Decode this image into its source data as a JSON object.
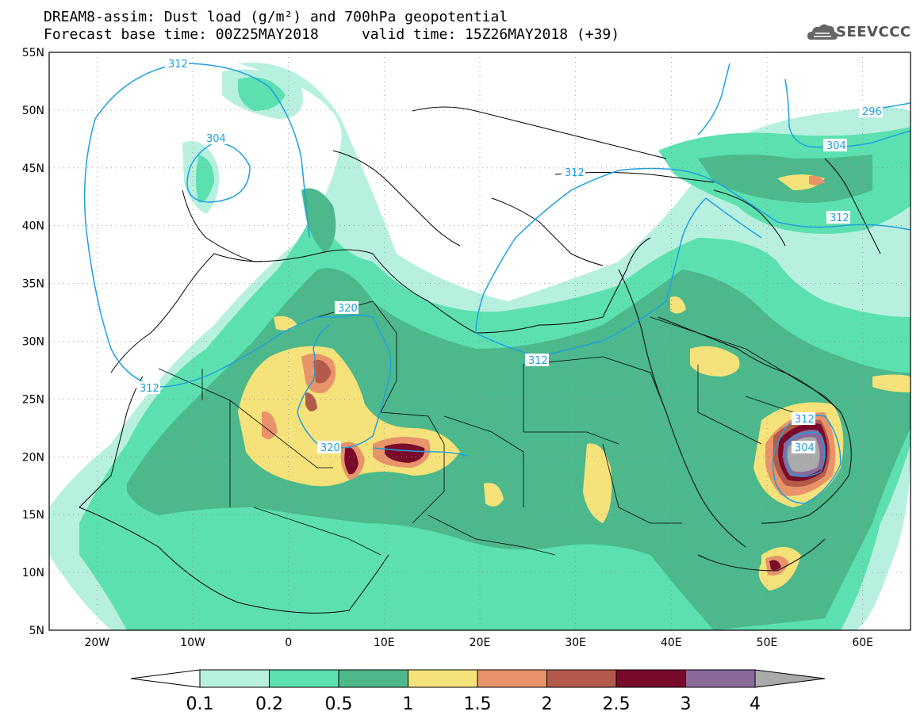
{
  "title": {
    "line1": "DREAM8-assim: Dust load (g/m²) and 700hPa geopotential",
    "line2": "Forecast base time: 00Z25MAY2018     valid time: 15Z26MAY2018 (+39)"
  },
  "logo": {
    "text": "SEEVCCC",
    "icon": "cloud-logo-icon"
  },
  "map": {
    "lon_range": [
      -25,
      65
    ],
    "lat_range": [
      5,
      55
    ],
    "lat_ticks": [
      "55N",
      "50N",
      "45N",
      "40N",
      "35N",
      "30N",
      "25N",
      "20N",
      "15N",
      "10N",
      "5N"
    ],
    "lon_ticks": [
      "20W",
      "10W",
      "0",
      "10E",
      "20E",
      "30E",
      "40E",
      "50E",
      "60E"
    ],
    "contour_labels": [
      "312",
      "304",
      "320",
      "312",
      "320",
      "312",
      "312",
      "304",
      "296",
      "312",
      "312",
      "304"
    ]
  },
  "colorbar": {
    "labels": [
      "0.1",
      "0.2",
      "0.5",
      "1",
      "1.5",
      "2",
      "2.5",
      "3",
      "4"
    ],
    "colors": [
      "#b8f0e0",
      "#5ce0b0",
      "#4cb88c",
      "#f5e27a",
      "#e8936a",
      "#b35a4a",
      "#7a0a2a",
      "#8a6a9a",
      "#aaaaaa"
    ]
  },
  "colors": {
    "c01": "#b8f0e0",
    "c02": "#5ce0b0",
    "c05": "#4cb88c",
    "c1": "#f5e27a",
    "c15": "#e8936a",
    "c2": "#b35a4a",
    "c25": "#7a0a2a",
    "c3": "#8a6a9a",
    "c4": "#aaaaaa",
    "contour": "#1fa0e0"
  }
}
